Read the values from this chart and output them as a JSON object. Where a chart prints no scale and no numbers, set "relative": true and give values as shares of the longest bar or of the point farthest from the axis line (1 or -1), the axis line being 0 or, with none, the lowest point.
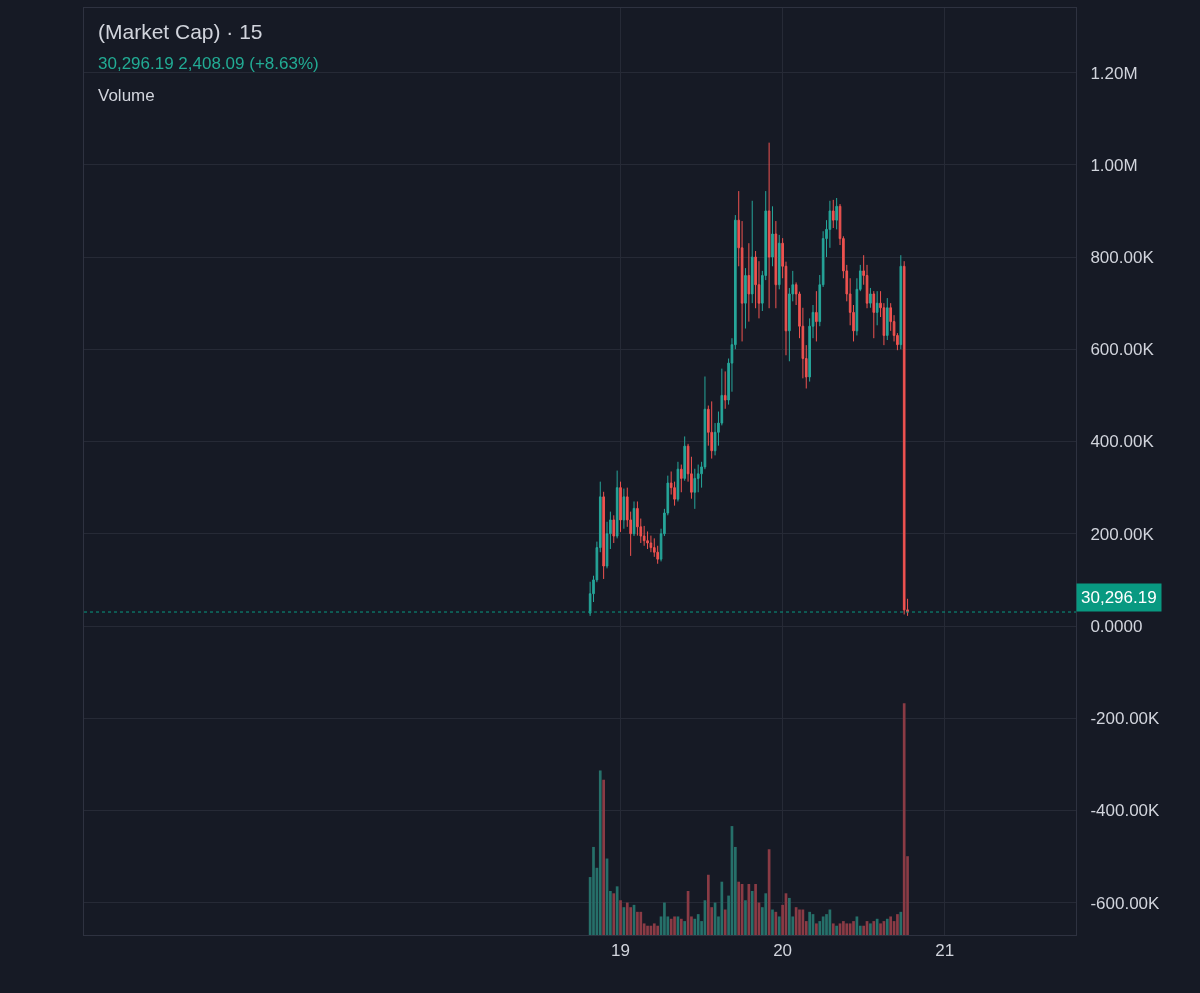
{
  "chart_data": [
    {
      "type": "candlestick",
      "title": "(Market Cap) · 15",
      "subtitle": "30,296.19 2,408.09 (+8.63%)",
      "x": [
        18.8125,
        18.8333,
        18.8542,
        18.875,
        18.8958,
        18.9167,
        18.9375,
        18.9583,
        18.9792,
        19.0,
        19.0208,
        19.0417,
        19.0625,
        19.0833,
        19.1042,
        19.125,
        19.1458,
        19.1667,
        19.1875,
        19.2083,
        19.2292,
        19.25,
        19.2708,
        19.2917,
        19.3125,
        19.3333,
        19.3542,
        19.375,
        19.3958,
        19.4167,
        19.4375,
        19.4583,
        19.4792,
        19.5,
        19.5208,
        19.5417,
        19.5625,
        19.5833,
        19.6042,
        19.625,
        19.6458,
        19.6667,
        19.6875,
        19.7083,
        19.7292,
        19.75,
        19.7708,
        19.7917,
        19.8125,
        19.8333,
        19.8542,
        19.875,
        19.8958,
        19.9167,
        19.9375,
        19.9583,
        19.9792,
        20.0,
        20.0208,
        20.0417,
        20.0625,
        20.0833,
        20.1042,
        20.125,
        20.1458,
        20.1667,
        20.1875,
        20.2083,
        20.2292,
        20.25,
        20.2708,
        20.2917,
        20.3125,
        20.3333,
        20.3542,
        20.375,
        20.3958,
        20.4167,
        20.4375,
        20.4583,
        20.4792,
        20.5,
        20.5208,
        20.5417,
        20.5625,
        20.5833,
        20.6042,
        20.625,
        20.6458,
        20.6667,
        20.6875,
        20.7083,
        20.7292,
        20.75,
        20.7708
      ],
      "ohlc": [
        [
          28000,
          96000,
          22000,
          70000
        ],
        [
          70000,
          109000,
          52000,
          100000
        ],
        [
          100000,
          183000,
          95000,
          170000
        ],
        [
          170000,
          313000,
          160000,
          280000
        ],
        [
          280000,
          291000,
          102000,
          130000
        ],
        [
          130000,
          226000,
          125000,
          200000
        ],
        [
          200000,
          248000,
          167000,
          230000
        ],
        [
          230000,
          240000,
          180000,
          195000
        ],
        [
          195000,
          337000,
          190000,
          300000
        ],
        [
          300000,
          313000,
          204000,
          230000
        ],
        [
          230000,
          298000,
          211000,
          280000
        ],
        [
          280000,
          300000,
          215000,
          230000
        ],
        [
          230000,
          248000,
          152000,
          200000
        ],
        [
          200000,
          270000,
          195000,
          255000
        ],
        [
          255000,
          270000,
          196000,
          215000
        ],
        [
          215000,
          233000,
          180000,
          195000
        ],
        [
          195000,
          217000,
          174000,
          185000
        ],
        [
          185000,
          205000,
          167000,
          180000
        ],
        [
          180000,
          196000,
          160000,
          170000
        ],
        [
          170000,
          190000,
          150000,
          160000
        ],
        [
          160000,
          174000,
          135000,
          145000
        ],
        [
          145000,
          211000,
          140000,
          200000
        ],
        [
          200000,
          254000,
          195000,
          245000
        ],
        [
          245000,
          326000,
          240000,
          310000
        ],
        [
          310000,
          335000,
          285000,
          300000
        ],
        [
          300000,
          313000,
          261000,
          275000
        ],
        [
          275000,
          356000,
          270000,
          340000
        ],
        [
          340000,
          350000,
          290000,
          320000
        ],
        [
          320000,
          411000,
          315000,
          390000
        ],
        [
          390000,
          395000,
          313000,
          330000
        ],
        [
          330000,
          367000,
          276000,
          290000
        ],
        [
          290000,
          341000,
          254000,
          320000
        ],
        [
          320000,
          350000,
          290000,
          330000
        ],
        [
          330000,
          356000,
          300000,
          345000
        ],
        [
          345000,
          541000,
          340000,
          470000
        ],
        [
          470000,
          478000,
          391000,
          420000
        ],
        [
          420000,
          487000,
          363000,
          380000
        ],
        [
          380000,
          440000,
          370000,
          420000
        ],
        [
          420000,
          465000,
          391000,
          440000
        ],
        [
          440000,
          558000,
          435000,
          500000
        ],
        [
          500000,
          552000,
          471000,
          490000
        ],
        [
          490000,
          580000,
          480000,
          570000
        ],
        [
          570000,
          624000,
          508000,
          610000
        ],
        [
          610000,
          891000,
          600000,
          880000
        ],
        [
          880000,
          943000,
          780000,
          820000
        ],
        [
          820000,
          878000,
          617000,
          700000
        ],
        [
          700000,
          776000,
          645000,
          760000
        ],
        [
          760000,
          830000,
          660000,
          720000
        ],
        [
          720000,
          922000,
          700000,
          800000
        ],
        [
          800000,
          813000,
          689000,
          740000
        ],
        [
          740000,
          791000,
          667000,
          700000
        ],
        [
          700000,
          770000,
          683000,
          760000
        ],
        [
          760000,
          943000,
          750000,
          900000
        ],
        [
          900000,
          1048000,
          689000,
          800000
        ],
        [
          800000,
          910000,
          780000,
          850000
        ],
        [
          850000,
          878000,
          689000,
          740000
        ],
        [
          740000,
          848000,
          730000,
          830000
        ],
        [
          830000,
          841000,
          754000,
          780000
        ],
        [
          780000,
          790000,
          587000,
          640000
        ],
        [
          640000,
          733000,
          574000,
          720000
        ],
        [
          720000,
          770000,
          704000,
          740000
        ],
        [
          740000,
          745000,
          696000,
          720000
        ],
        [
          720000,
          725000,
          624000,
          650000
        ],
        [
          650000,
          690000,
          537000,
          580000
        ],
        [
          580000,
          609000,
          515000,
          540000
        ],
        [
          540000,
          667000,
          530000,
          650000
        ],
        [
          650000,
          696000,
          624000,
          680000
        ],
        [
          680000,
          726000,
          617000,
          660000
        ],
        [
          660000,
          761000,
          650000,
          740000
        ],
        [
          740000,
          856000,
          735000,
          840000
        ],
        [
          840000,
          880000,
          800000,
          860000
        ],
        [
          860000,
          922000,
          820000,
          900000
        ],
        [
          900000,
          924000,
          863000,
          880000
        ],
        [
          880000,
          928000,
          860000,
          910000
        ],
        [
          910000,
          915000,
          826000,
          840000
        ],
        [
          840000,
          845000,
          754000,
          770000
        ],
        [
          770000,
          783000,
          704000,
          720000
        ],
        [
          720000,
          754000,
          652000,
          680000
        ],
        [
          680000,
          696000,
          617000,
          640000
        ],
        [
          640000,
          754000,
          630000,
          730000
        ],
        [
          730000,
          783000,
          726000,
          770000
        ],
        [
          770000,
          804000,
          740000,
          760000
        ],
        [
          760000,
          783000,
          689000,
          700000
        ],
        [
          700000,
          733000,
          690000,
          720000
        ],
        [
          720000,
          726000,
          624000,
          680000
        ],
        [
          680000,
          726000,
          652000,
          700000
        ],
        [
          700000,
          726000,
          670000,
          690000
        ],
        [
          690000,
          700000,
          609000,
          630000
        ],
        [
          630000,
          711000,
          620000,
          690000
        ],
        [
          690000,
          700000,
          640000,
          660000
        ],
        [
          660000,
          674000,
          617000,
          630000
        ],
        [
          630000,
          635000,
          598000,
          610000
        ],
        [
          610000,
          804000,
          600000,
          780000
        ],
        [
          780000,
          791000,
          25000,
          35000
        ],
        [
          35000,
          59000,
          22000,
          30296.19
        ]
      ],
      "colors": [
        "#26a69a",
        "#26a69a",
        "#26a69a",
        "#26a69a",
        "#ef5350",
        "#26a69a",
        "#26a69a",
        "#ef5350",
        "#26a69a",
        "#ef5350",
        "#26a69a",
        "#ef5350",
        "#ef5350",
        "#26a69a",
        "#ef5350",
        "#ef5350",
        "#ef5350",
        "#ef5350",
        "#ef5350",
        "#ef5350",
        "#ef5350",
        "#26a69a",
        "#26a69a",
        "#26a69a",
        "#ef5350",
        "#ef5350",
        "#26a69a",
        "#ef5350",
        "#26a69a",
        "#ef5350",
        "#ef5350",
        "#26a69a",
        "#26a69a",
        "#26a69a",
        "#26a69a",
        "#ef5350",
        "#ef5350",
        "#26a69a",
        "#26a69a",
        "#26a69a",
        "#ef5350",
        "#26a69a",
        "#26a69a",
        "#26a69a",
        "#ef5350",
        "#ef5350",
        "#26a69a",
        "#ef5350",
        "#26a69a",
        "#ef5350",
        "#ef5350",
        "#26a69a",
        "#26a69a",
        "#ef5350",
        "#26a69a",
        "#ef5350",
        "#26a69a",
        "#ef5350",
        "#ef5350",
        "#26a69a",
        "#26a69a",
        "#ef5350",
        "#ef5350",
        "#ef5350",
        "#ef5350",
        "#26a69a",
        "#26a69a",
        "#ef5350",
        "#26a69a",
        "#26a69a",
        "#26a69a",
        "#26a69a",
        "#ef5350",
        "#26a69a",
        "#ef5350",
        "#ef5350",
        "#ef5350",
        "#ef5350",
        "#ef5350",
        "#26a69a",
        "#26a69a",
        "#ef5350",
        "#ef5350",
        "#26a69a",
        "#ef5350",
        "#26a69a",
        "#ef5350",
        "#ef5350",
        "#26a69a",
        "#ef5350",
        "#ef5350",
        "#ef5350",
        "#26a69a",
        "#ef5350",
        "#ef5350"
      ],
      "xlim": [
        15.69,
        21.81
      ],
      "xticks": [
        19,
        20,
        21
      ],
      "ylim": [
        -670000,
        1340000
      ],
      "yticks": [
        {
          "value": 1200000,
          "label": "1.20M"
        },
        {
          "value": 1000000,
          "label": "1.00M"
        },
        {
          "value": 800000,
          "label": "800.00K"
        },
        {
          "value": 600000,
          "label": "600.00K"
        },
        {
          "value": 400000,
          "label": "400.00K"
        },
        {
          "value": 200000,
          "label": "200.00K"
        },
        {
          "value": 0,
          "label": "0.0000"
        },
        {
          "value": -200000,
          "label": "-200.00K"
        },
        {
          "value": -400000,
          "label": "-400.00K"
        },
        {
          "value": -600000,
          "label": "-600.00K"
        }
      ],
      "grid": true,
      "ref_lines": [
        {
          "axis": "y",
          "value": 30296.19,
          "label": "30,296.19",
          "color": "#089981",
          "line_style": "dotted"
        }
      ]
    },
    {
      "type": "bar",
      "title": "Volume",
      "relative": true,
      "tick_labels": false,
      "xlim": [
        15.69,
        21.81
      ],
      "x": [
        18.8125,
        18.8333,
        18.8542,
        18.875,
        18.8958,
        18.9167,
        18.9375,
        18.9583,
        18.9792,
        19.0,
        19.0208,
        19.0417,
        19.0625,
        19.0833,
        19.1042,
        19.125,
        19.1458,
        19.1667,
        19.1875,
        19.2083,
        19.2292,
        19.25,
        19.2708,
        19.2917,
        19.3125,
        19.3333,
        19.3542,
        19.375,
        19.3958,
        19.4167,
        19.4375,
        19.4583,
        19.4792,
        19.5,
        19.5208,
        19.5417,
        19.5625,
        19.5833,
        19.6042,
        19.625,
        19.6458,
        19.6667,
        19.6875,
        19.7083,
        19.7292,
        19.75,
        19.7708,
        19.7917,
        19.8125,
        19.8333,
        19.8542,
        19.875,
        19.8958,
        19.9167,
        19.9375,
        19.9583,
        19.9792,
        20.0,
        20.0208,
        20.0417,
        20.0625,
        20.0833,
        20.1042,
        20.125,
        20.1458,
        20.1667,
        20.1875,
        20.2083,
        20.2292,
        20.25,
        20.2708,
        20.2917,
        20.3125,
        20.3333,
        20.3542,
        20.375,
        20.3958,
        20.4167,
        20.4375,
        20.4583,
        20.4792,
        20.5,
        20.5208,
        20.5417,
        20.5625,
        20.5833,
        20.6042,
        20.625,
        20.6458,
        20.6667,
        20.6875,
        20.7083,
        20.7292,
        20.75,
        20.7708
      ],
      "values": [
        0.25,
        0.38,
        0.29,
        0.71,
        0.67,
        0.33,
        0.19,
        0.18,
        0.21,
        0.15,
        0.12,
        0.14,
        0.12,
        0.13,
        0.1,
        0.1,
        0.05,
        0.04,
        0.04,
        0.05,
        0.04,
        0.08,
        0.14,
        0.08,
        0.07,
        0.08,
        0.08,
        0.07,
        0.06,
        0.19,
        0.08,
        0.07,
        0.09,
        0.06,
        0.15,
        0.26,
        0.12,
        0.14,
        0.08,
        0.23,
        0.11,
        0.17,
        0.47,
        0.38,
        0.23,
        0.22,
        0.15,
        0.22,
        0.19,
        0.22,
        0.14,
        0.12,
        0.18,
        0.37,
        0.11,
        0.1,
        0.08,
        0.13,
        0.18,
        0.16,
        0.08,
        0.12,
        0.11,
        0.11,
        0.06,
        0.1,
        0.09,
        0.05,
        0.06,
        0.08,
        0.09,
        0.11,
        0.05,
        0.04,
        0.05,
        0.06,
        0.05,
        0.05,
        0.06,
        0.08,
        0.04,
        0.04,
        0.06,
        0.05,
        0.06,
        0.07,
        0.05,
        0.06,
        0.07,
        0.08,
        0.06,
        0.09,
        0.1,
        1,
        0.34
      ],
      "colors": [
        "#26706a",
        "#26706a",
        "#26706a",
        "#26706a",
        "#8a3b45",
        "#26706a",
        "#26706a",
        "#8a3b45",
        "#26706a",
        "#8a3b45",
        "#26706a",
        "#8a3b45",
        "#8a3b45",
        "#26706a",
        "#8a3b45",
        "#8a3b45",
        "#8a3b45",
        "#8a3b45",
        "#8a3b45",
        "#8a3b45",
        "#8a3b45",
        "#26706a",
        "#26706a",
        "#26706a",
        "#8a3b45",
        "#8a3b45",
        "#26706a",
        "#8a3b45",
        "#26706a",
        "#8a3b45",
        "#8a3b45",
        "#26706a",
        "#26706a",
        "#26706a",
        "#26706a",
        "#8a3b45",
        "#8a3b45",
        "#26706a",
        "#26706a",
        "#26706a",
        "#8a3b45",
        "#26706a",
        "#26706a",
        "#26706a",
        "#8a3b45",
        "#8a3b45",
        "#26706a",
        "#8a3b45",
        "#26706a",
        "#8a3b45",
        "#8a3b45",
        "#26706a",
        "#26706a",
        "#8a3b45",
        "#26706a",
        "#8a3b45",
        "#26706a",
        "#8a3b45",
        "#8a3b45",
        "#26706a",
        "#26706a",
        "#8a3b45",
        "#8a3b45",
        "#8a3b45",
        "#8a3b45",
        "#26706a",
        "#26706a",
        "#8a3b45",
        "#26706a",
        "#26706a",
        "#26706a",
        "#26706a",
        "#8a3b45",
        "#26706a",
        "#8a3b45",
        "#8a3b45",
        "#8a3b45",
        "#8a3b45",
        "#8a3b45",
        "#26706a",
        "#26706a",
        "#8a3b45",
        "#8a3b45",
        "#26706a",
        "#8a3b45",
        "#26706a",
        "#8a3b45",
        "#8a3b45",
        "#26706a",
        "#8a3b45",
        "#8a3b45",
        "#8a3b45",
        "#26706a",
        "#8a3b45",
        "#8a3b45"
      ]
    }
  ]
}
